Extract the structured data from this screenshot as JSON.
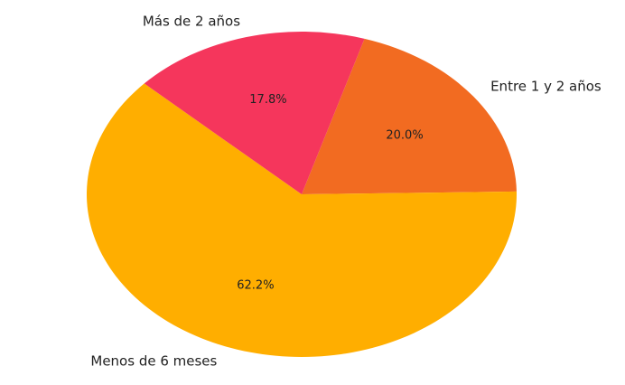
{
  "chart_data": {
    "type": "pie",
    "title": "",
    "slices": [
      {
        "label": "Entre 1 y 2 años",
        "value": 20.0,
        "pct_label": "20.0%",
        "color": "#f26b21"
      },
      {
        "label": "Menos de 6 meses",
        "value": 62.2,
        "pct_label": "62.2%",
        "color": "#ffae00"
      },
      {
        "label": "Más de 2 años",
        "value": 17.8,
        "pct_label": "17.8%",
        "color": "#f5365c"
      }
    ],
    "start_angle_deg": 73,
    "direction": "clockwise",
    "legend": "none"
  }
}
